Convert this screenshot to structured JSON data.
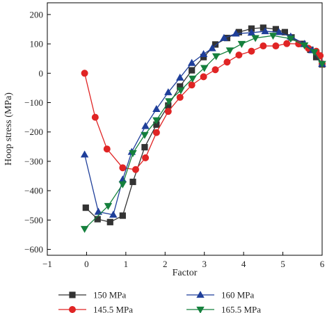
{
  "chart_data": {
    "type": "line",
    "title": "",
    "xlabel": "Factor",
    "ylabel": "Hoop stress (MPa)",
    "xlim": [
      -1,
      6
    ],
    "ylim": [
      -620,
      240
    ],
    "xticks": [
      -1,
      0,
      1,
      2,
      3,
      4,
      5,
      6
    ],
    "xtick_labels": [
      "−1",
      "0",
      "1",
      "2",
      "3",
      "4",
      "5",
      "6"
    ],
    "yticks": [
      -600,
      -500,
      -400,
      -300,
      -200,
      -100,
      0,
      100,
      200
    ],
    "ytick_labels": [
      "−600",
      "−500",
      "−400",
      "−300",
      "−200",
      "−100",
      "0",
      "100",
      "200"
    ],
    "grid": false,
    "legend_position": "bottom",
    "series": [
      {
        "name": "150 MPa",
        "color": "#333333",
        "marker": "square",
        "x": [
          -0.02,
          0.28,
          0.6,
          0.92,
          1.18,
          1.48,
          1.78,
          2.08,
          2.38,
          2.68,
          2.98,
          3.28,
          3.58,
          3.88,
          4.2,
          4.5,
          4.82,
          5.05,
          5.22,
          5.5,
          5.7,
          5.85,
          6.0
        ],
        "y": [
          -458,
          -497,
          -507,
          -485,
          -370,
          -252,
          -175,
          -110,
          -45,
          10,
          55,
          98,
          120,
          140,
          152,
          155,
          150,
          140,
          122,
          100,
          80,
          55,
          30
        ]
      },
      {
        "name": "145.5 MPa",
        "color": "#e02424",
        "marker": "circle",
        "x": [
          -0.05,
          0.22,
          0.52,
          0.92,
          1.25,
          1.5,
          1.78,
          2.08,
          2.38,
          2.68,
          2.98,
          3.28,
          3.58,
          3.88,
          4.2,
          4.5,
          4.82,
          5.1,
          5.4,
          5.65,
          5.85,
          5.95,
          6.0
        ],
        "y": [
          0,
          -150,
          -258,
          -322,
          -328,
          -288,
          -202,
          -130,
          -82,
          -40,
          -12,
          12,
          38,
          62,
          75,
          93,
          93,
          101,
          100,
          85,
          75,
          60,
          32
        ]
      },
      {
        "name": "160 MPa",
        "color": "#1f3f9a",
        "marker": "triangle-up",
        "x": [
          -0.05,
          0.3,
          0.68,
          0.92,
          1.15,
          1.5,
          1.78,
          2.08,
          2.38,
          2.68,
          2.98,
          3.2,
          3.5,
          3.8,
          4.2,
          4.55,
          4.9,
          5.2,
          5.55,
          5.75,
          6.0
        ],
        "y": [
          -277,
          -472,
          -482,
          -362,
          -268,
          -180,
          -122,
          -65,
          -15,
          35,
          65,
          85,
          120,
          135,
          138,
          143,
          140,
          125,
          100,
          78,
          32
        ]
      },
      {
        "name": "165.5 MPa",
        "color": "#15803d",
        "marker": "triangle-down",
        "x": [
          -0.05,
          0.55,
          0.92,
          1.18,
          1.48,
          1.78,
          2.1,
          2.4,
          2.7,
          3.0,
          3.3,
          3.65,
          3.95,
          4.3,
          4.75,
          5.2,
          5.55,
          5.8,
          6.0
        ],
        "y": [
          -530,
          -452,
          -378,
          -272,
          -210,
          -160,
          -95,
          -58,
          -18,
          18,
          58,
          78,
          100,
          120,
          128,
          118,
          95,
          72,
          32
        ]
      }
    ]
  }
}
